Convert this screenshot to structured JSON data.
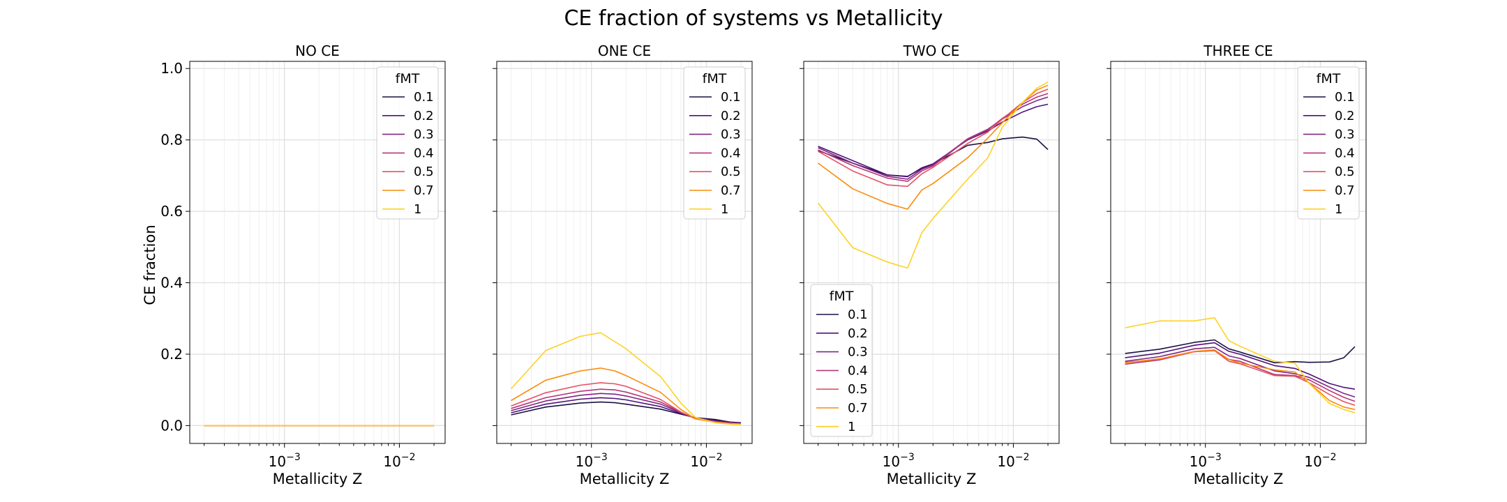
{
  "chart_data": {
    "type": "line",
    "title": "CE fraction of systems vs Metallicity",
    "xlabel": "Metallicity Z",
    "ylabel": "CE fraction",
    "xscale": "log",
    "xlim": [
      0.00015,
      0.025
    ],
    "ylim": [
      -0.05,
      1.02
    ],
    "xticks": [
      0.001,
      0.01
    ],
    "xtick_labels": [
      {
        "base": "10",
        "exp": "−3"
      },
      {
        "base": "10",
        "exp": "−2"
      }
    ],
    "yticks": [
      0.0,
      0.2,
      0.4,
      0.6,
      0.8,
      1.0
    ],
    "ytick_labels": [
      "0.0",
      "0.2",
      "0.4",
      "0.6",
      "0.8",
      "1.0"
    ],
    "grid": true,
    "sharey": true,
    "legend_title": "fMT",
    "colors": {
      "0.1": "#1b1044",
      "0.2": "#4f127b",
      "0.3": "#812581",
      "0.4": "#b5367a",
      "0.5": "#e55064",
      "0.7": "#f98c0a",
      "1": "#fcd225"
    },
    "x": [
      0.0002,
      0.0004,
      0.0008,
      0.0012,
      0.0016,
      0.002,
      0.004,
      0.006,
      0.008,
      0.012,
      0.016,
      0.02
    ],
    "panels": [
      {
        "title": "NO CE",
        "legend_loc": "upper right",
        "series": [
          {
            "name": "0.1",
            "values": [
              0,
              0,
              0,
              0,
              0,
              0,
              0,
              0,
              0,
              0,
              0,
              0
            ]
          },
          {
            "name": "0.2",
            "values": [
              0,
              0,
              0,
              0,
              0,
              0,
              0,
              0,
              0,
              0,
              0,
              0
            ]
          },
          {
            "name": "0.3",
            "values": [
              0,
              0,
              0,
              0,
              0,
              0,
              0,
              0,
              0,
              0,
              0,
              0
            ]
          },
          {
            "name": "0.4",
            "values": [
              0,
              0,
              0,
              0,
              0,
              0,
              0,
              0,
              0,
              0,
              0,
              0
            ]
          },
          {
            "name": "0.5",
            "values": [
              0,
              0,
              0,
              0,
              0,
              0,
              0,
              0,
              0,
              0,
              0,
              0
            ]
          },
          {
            "name": "0.7",
            "values": [
              0,
              0,
              0,
              0,
              0,
              0,
              0,
              0,
              0,
              0,
              0,
              0
            ]
          },
          {
            "name": "1",
            "values": [
              0,
              0,
              0,
              0,
              0,
              0,
              0,
              0,
              0,
              0,
              0,
              0
            ]
          }
        ]
      },
      {
        "title": "ONE CE",
        "legend_loc": "upper right",
        "series": [
          {
            "name": "0.1",
            "values": [
              0.03,
              0.052,
              0.063,
              0.066,
              0.064,
              0.06,
              0.046,
              0.032,
              0.022,
              0.017,
              0.01,
              0.008
            ]
          },
          {
            "name": "0.2",
            "values": [
              0.036,
              0.06,
              0.074,
              0.078,
              0.076,
              0.072,
              0.053,
              0.034,
              0.022,
              0.014,
              0.009,
              0.007
            ]
          },
          {
            "name": "0.3",
            "values": [
              0.042,
              0.069,
              0.085,
              0.09,
              0.088,
              0.083,
              0.06,
              0.036,
              0.021,
              0.012,
              0.008,
              0.006
            ]
          },
          {
            "name": "0.4",
            "values": [
              0.048,
              0.078,
              0.096,
              0.102,
              0.1,
              0.094,
              0.066,
              0.037,
              0.02,
              0.011,
              0.007,
              0.005
            ]
          },
          {
            "name": "0.5",
            "values": [
              0.055,
              0.092,
              0.113,
              0.12,
              0.117,
              0.11,
              0.073,
              0.038,
              0.019,
              0.01,
              0.006,
              0.005
            ]
          },
          {
            "name": "0.7",
            "values": [
              0.07,
              0.127,
              0.153,
              0.161,
              0.153,
              0.14,
              0.093,
              0.045,
              0.019,
              0.009,
              0.005,
              0.004
            ]
          },
          {
            "name": "1",
            "values": [
              0.103,
              0.21,
              0.25,
              0.26,
              0.235,
              0.215,
              0.137,
              0.063,
              0.023,
              0.008,
              0.004,
              0.003
            ]
          }
        ]
      },
      {
        "title": "TWO CE",
        "legend_loc": "lower left",
        "series": [
          {
            "name": "0.1",
            "values": [
              0.77,
              0.735,
              0.702,
              0.698,
              0.72,
              0.732,
              0.785,
              0.793,
              0.803,
              0.808,
              0.802,
              0.773
            ]
          },
          {
            "name": "0.2",
            "values": [
              0.782,
              0.742,
              0.702,
              0.697,
              0.722,
              0.733,
              0.8,
              0.825,
              0.85,
              0.878,
              0.893,
              0.9
            ]
          },
          {
            "name": "0.3",
            "values": [
              0.778,
              0.735,
              0.698,
              0.69,
              0.718,
              0.73,
              0.803,
              0.83,
              0.858,
              0.893,
              0.91,
              0.92
            ]
          },
          {
            "name": "0.4",
            "values": [
              0.772,
              0.728,
              0.693,
              0.684,
              0.713,
              0.727,
              0.802,
              0.828,
              0.86,
              0.9,
              0.92,
              0.93
            ]
          },
          {
            "name": "0.5",
            "values": [
              0.768,
              0.713,
              0.674,
              0.67,
              0.705,
              0.723,
              0.79,
              0.822,
              0.858,
              0.905,
              0.93,
              0.942
            ]
          },
          {
            "name": "0.7",
            "values": [
              0.735,
              0.663,
              0.622,
              0.606,
              0.66,
              0.678,
              0.75,
              0.805,
              0.848,
              0.905,
              0.94,
              0.953
            ]
          },
          {
            "name": "1",
            "values": [
              0.623,
              0.498,
              0.458,
              0.441,
              0.54,
              0.58,
              0.69,
              0.75,
              0.835,
              0.905,
              0.945,
              0.962
            ]
          }
        ]
      },
      {
        "title": "THREE CE",
        "legend_loc": "upper right",
        "series": [
          {
            "name": "0.1",
            "values": [
              0.202,
              0.214,
              0.233,
              0.24,
              0.215,
              0.206,
              0.176,
              0.179,
              0.177,
              0.178,
              0.19,
              0.221
            ]
          },
          {
            "name": "0.2",
            "values": [
              0.19,
              0.203,
              0.225,
              0.232,
              0.208,
              0.2,
              0.168,
              0.16,
              0.144,
              0.118,
              0.107,
              0.102
            ]
          },
          {
            "name": "0.3",
            "values": [
              0.18,
              0.193,
              0.215,
              0.219,
              0.195,
              0.188,
              0.153,
              0.145,
              0.135,
              0.108,
              0.09,
              0.08
            ]
          },
          {
            "name": "0.4",
            "values": [
              0.172,
              0.184,
              0.207,
              0.21,
              0.185,
              0.18,
              0.143,
              0.14,
              0.128,
              0.098,
              0.079,
              0.068
            ]
          },
          {
            "name": "0.5",
            "values": [
              0.177,
              0.186,
              0.207,
              0.21,
              0.18,
              0.173,
              0.14,
              0.138,
              0.12,
              0.087,
              0.067,
              0.057
            ]
          },
          {
            "name": "0.7",
            "values": [
              0.176,
              0.187,
              0.208,
              0.212,
              0.185,
              0.175,
              0.156,
              0.15,
              0.119,
              0.07,
              0.052,
              0.045
            ]
          },
          {
            "name": "1",
            "values": [
              0.274,
              0.293,
              0.293,
              0.302,
              0.238,
              0.222,
              0.18,
              0.175,
              0.118,
              0.062,
              0.045,
              0.036
            ]
          }
        ]
      }
    ]
  }
}
